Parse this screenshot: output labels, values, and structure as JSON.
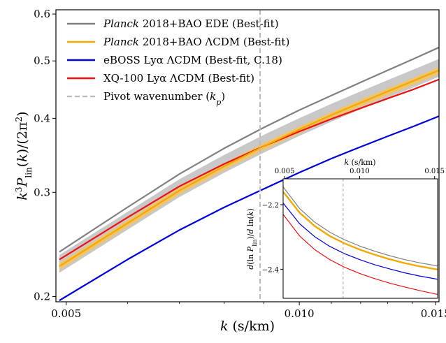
{
  "chart_data": [
    {
      "type": "line",
      "xlabel": "k (s/km)",
      "ylabel": "k³P_lin(k)/(2π²)",
      "xlim": [
        0.00485,
        0.01515
      ],
      "ylim": [
        0.196,
        0.61
      ],
      "yscale": "log",
      "xticks": [
        {
          "v": 0.005,
          "label": "0.005"
        },
        {
          "v": 0.01,
          "label": "0.010"
        },
        {
          "v": 0.015,
          "label": "0.015"
        }
      ],
      "yticks": [
        {
          "v": 0.2,
          "label": "0.2"
        },
        {
          "v": 0.3,
          "label": "0.3"
        },
        {
          "v": 0.4,
          "label": "0.4"
        },
        {
          "v": 0.5,
          "label": "0.5"
        },
        {
          "v": 0.6,
          "label": "0.6"
        }
      ],
      "legend_position": "top-left",
      "band": {
        "color": "#c8c8c8",
        "lower_factor": 0.975,
        "upper_factor": 1.045
      },
      "series": [
        {
          "name": "Planck 2018+BAO EDE (Best-fit)",
          "name_italic": "Planck",
          "name_rest": " 2018+BAO EDE (Best-fit)",
          "color": "#808080",
          "x": [
            0.0049,
            0.006,
            0.007,
            0.008,
            0.009,
            0.01,
            0.011,
            0.012,
            0.013,
            0.014,
            0.0152
          ],
          "y": [
            0.238,
            0.283,
            0.322,
            0.356,
            0.386,
            0.413,
            0.437,
            0.46,
            0.482,
            0.503,
            0.528
          ]
        },
        {
          "name": "Planck 2018+BAO ΛCDM (Best-fit)",
          "name_italic": "Planck",
          "name_rest": " 2018+BAO ΛCDM (Best-fit)",
          "color": "#f5a800",
          "x": [
            0.0049,
            0.006,
            0.007,
            0.008,
            0.009,
            0.01,
            0.011,
            0.012,
            0.013,
            0.014,
            0.0152
          ],
          "y": [
            0.225,
            0.266,
            0.302,
            0.332,
            0.359,
            0.383,
            0.405,
            0.425,
            0.444,
            0.462,
            0.483
          ]
        },
        {
          "name": "eBOSS Lyα ΛCDM (Best-fit, C.18)",
          "color": "#0000dd",
          "x": [
            0.0049,
            0.006,
            0.007,
            0.008,
            0.009,
            0.01,
            0.011,
            0.012,
            0.013,
            0.014,
            0.0152
          ],
          "y": [
            0.197,
            0.231,
            0.259,
            0.283,
            0.304,
            0.324,
            0.342,
            0.358,
            0.373,
            0.387,
            0.404
          ]
        },
        {
          "name": "XQ-100 Lyα ΛCDM (Best-fit)",
          "color": "#ee1111",
          "x": [
            0.0049,
            0.006,
            0.007,
            0.008,
            0.009,
            0.01,
            0.011,
            0.012,
            0.013,
            0.014,
            0.0152
          ],
          "y": [
            0.231,
            0.272,
            0.307,
            0.335,
            0.359,
            0.38,
            0.399,
            0.416,
            0.432,
            0.447,
            0.466
          ]
        }
      ],
      "pivot": {
        "name": "Pivot wavenumber (k_p)",
        "label_text": "Pivot wavenumber (",
        "label_var": "k",
        "label_sub": "p",
        "label_end": ")",
        "x": 0.0089,
        "color": "#bbbbbb"
      }
    },
    {
      "type": "line",
      "xlabel": "k (s/km)",
      "ylabel": "d(ln P_lin)/d ln(k)",
      "xlim": [
        0.0049,
        0.0152
      ],
      "ylim": [
        -2.49,
        -2.12
      ],
      "xticks": [
        {
          "v": 0.005,
          "label": "0.005"
        },
        {
          "v": 0.01,
          "label": "0.010"
        },
        {
          "v": 0.015,
          "label": "0.015"
        }
      ],
      "yticks": [
        {
          "v": -2.2,
          "label": "−2.2"
        },
        {
          "v": -2.4,
          "label": "−2.4"
        }
      ],
      "pivot_x": 0.0089,
      "series": [
        {
          "name": "Planck 2018+BAO EDE (Best-fit)",
          "color": "#808080",
          "x": [
            0.0049,
            0.006,
            0.007,
            0.008,
            0.009,
            0.01,
            0.011,
            0.012,
            0.013,
            0.014,
            0.0152
          ],
          "y": [
            -2.145,
            -2.212,
            -2.254,
            -2.285,
            -2.309,
            -2.328,
            -2.344,
            -2.358,
            -2.37,
            -2.38,
            -2.39
          ]
        },
        {
          "name": "Planck 2018+BAO ΛCDM (Best-fit)",
          "color": "#f5a800",
          "x": [
            0.0049,
            0.006,
            0.007,
            0.008,
            0.009,
            0.01,
            0.011,
            0.012,
            0.013,
            0.014,
            0.0152
          ],
          "y": [
            -2.16,
            -2.225,
            -2.266,
            -2.297,
            -2.32,
            -2.339,
            -2.355,
            -2.369,
            -2.381,
            -2.391,
            -2.401
          ]
        },
        {
          "name": "eBOSS Lyα ΛCDM (Best-fit, C.18)",
          "color": "#0000dd",
          "x": [
            0.0049,
            0.006,
            0.007,
            0.008,
            0.009,
            0.01,
            0.011,
            0.012,
            0.013,
            0.014,
            0.0152
          ],
          "y": [
            -2.195,
            -2.259,
            -2.299,
            -2.329,
            -2.352,
            -2.37,
            -2.386,
            -2.399,
            -2.411,
            -2.421,
            -2.431
          ]
        },
        {
          "name": "XQ-100 Lyα ΛCDM (Best-fit)",
          "color": "#ee1111",
          "x": [
            0.0049,
            0.006,
            0.007,
            0.008,
            0.009,
            0.01,
            0.011,
            0.012,
            0.013,
            0.014,
            0.0152
          ],
          "y": [
            -2.23,
            -2.297,
            -2.339,
            -2.37,
            -2.394,
            -2.413,
            -2.429,
            -2.443,
            -2.455,
            -2.466,
            -2.478
          ]
        }
      ]
    }
  ]
}
